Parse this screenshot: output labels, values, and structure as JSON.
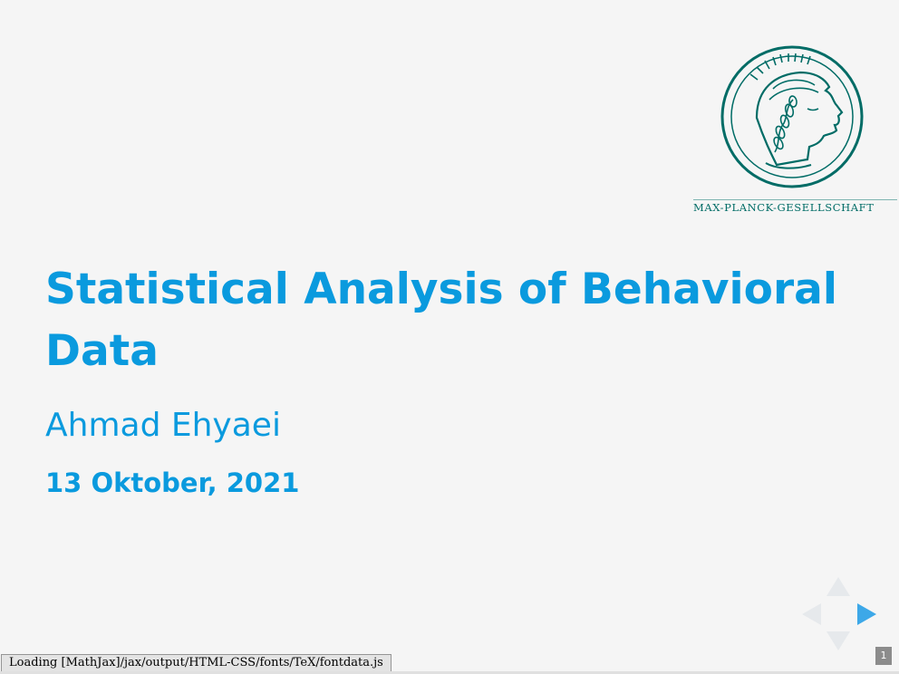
{
  "logo": {
    "text": "MAX-PLANCK-GESELLSCHAFT",
    "icon": "minerva-emblem-icon",
    "color": "#006c66"
  },
  "slide": {
    "title": "Statistical Analysis of Behavioral Data",
    "author": "Ahmad Ehyaei",
    "date": "13 Oktober, 2021",
    "accent_color": "#0a9ade",
    "number": "1"
  },
  "navigation": {
    "up": "nav-up-arrow-icon",
    "down": "nav-down-arrow-icon",
    "left": "nav-left-arrow-icon",
    "right": "nav-right-arrow-icon"
  },
  "status": {
    "message": "Loading [MathJax]/jax/output/HTML-CSS/fonts/TeX/fontdata.js"
  }
}
